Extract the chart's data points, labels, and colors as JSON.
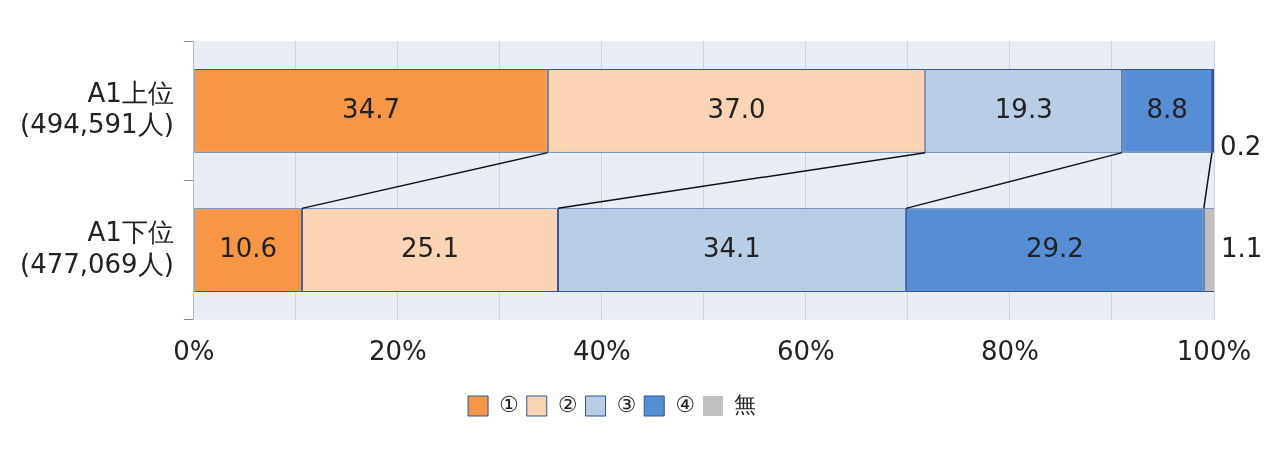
{
  "chart_data": {
    "type": "bar",
    "orientation": "horizontal",
    "stacked": true,
    "grid": "x",
    "legend": "bottom",
    "categories": [
      "A1上位\n(494,591人)",
      "A1下位\n(477,069人)"
    ],
    "series": [
      {
        "name": "①",
        "color": "#f79646",
        "values": [
          34.7,
          10.6
        ],
        "value_labels": [
          "34.7",
          "10.6"
        ]
      },
      {
        "name": "②",
        "color": "#fbd4b4",
        "values": [
          37.0,
          25.1
        ],
        "value_labels": [
          "37.0",
          "25.1"
        ]
      },
      {
        "name": "③",
        "color": "#b9cde5",
        "values": [
          19.3,
          34.1
        ],
        "value_labels": [
          "19.3",
          "34.1"
        ]
      },
      {
        "name": "④",
        "color": "#558ed5",
        "values": [
          8.8,
          29.2
        ],
        "value_labels": [
          "8.8",
          "29.2"
        ]
      },
      {
        "name": "無",
        "color": "#c0c0c0",
        "values": [
          0.2,
          1.1
        ],
        "value_labels": [
          "0.2",
          "1.1"
        ]
      }
    ],
    "xlim": [
      0,
      100
    ],
    "xticks": [
      {
        "value": 0,
        "label": "0%"
      },
      {
        "value": 10,
        "label": null
      },
      {
        "value": 20,
        "label": "20%"
      },
      {
        "value": 30,
        "label": null
      },
      {
        "value": 40,
        "label": "40%"
      },
      {
        "value": 50,
        "label": null
      },
      {
        "value": 60,
        "label": "60%"
      },
      {
        "value": 70,
        "label": null
      },
      {
        "value": 80,
        "label": "80%"
      },
      {
        "value": 90,
        "label": null
      },
      {
        "value": 100,
        "label": "100%"
      }
    ]
  }
}
